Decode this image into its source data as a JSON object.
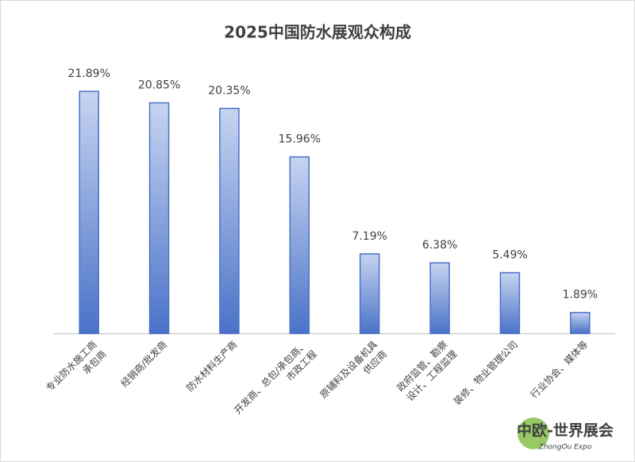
{
  "chart_data": {
    "type": "bar",
    "title": "2025中国防水展观众构成",
    "categories": [
      [
        "专业防水施工商",
        "承包商"
      ],
      [
        "经销商/批发商"
      ],
      [
        "防水材料生产商"
      ],
      [
        "开发商、总包/承包商、",
        "市政工程"
      ],
      [
        "原辅料及设备机具",
        "供应商"
      ],
      [
        "政府监管、勘察",
        "设计、工程监理"
      ],
      [
        "装修、物业管理公司"
      ],
      [
        "行业协会、媒体等"
      ]
    ],
    "values": [
      21.89,
      20.85,
      20.35,
      15.96,
      7.19,
      6.38,
      5.49,
      1.89
    ],
    "value_labels": [
      "21.89%",
      "20.85%",
      "20.35%",
      "15.96%",
      "7.19%",
      "6.38%",
      "5.49%",
      "1.89%"
    ],
    "color": "#4a72c8"
  },
  "watermark": {
    "title": "中欧-世界展会",
    "subtitle": "ZhongOu Expo"
  }
}
